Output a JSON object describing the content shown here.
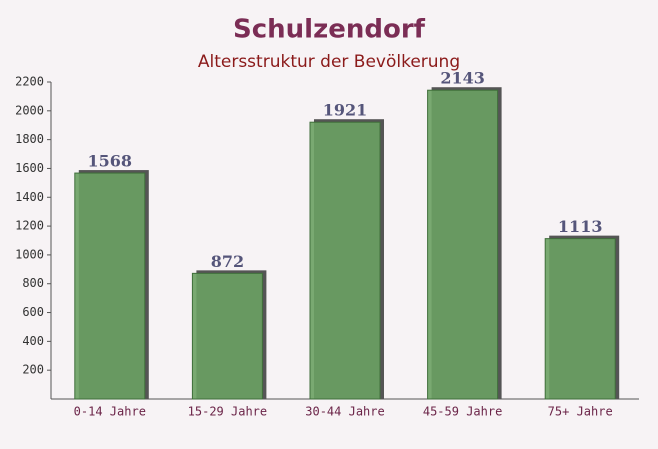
{
  "chart_data": {
    "type": "bar",
    "title": "Schulzendorf",
    "subtitle": "Altersstruktur der Bevölkerung",
    "categories": [
      "0-14 Jahre",
      "15-29 Jahre",
      "30-44 Jahre",
      "45-59 Jahre",
      "75+ Jahre"
    ],
    "values": [
      1568,
      872,
      1921,
      2143,
      1113
    ],
    "color": "#6aa163",
    "ylim": [
      0,
      2200
    ],
    "yticks": [
      200,
      400,
      600,
      800,
      1000,
      1200,
      1400,
      1600,
      1800,
      2000,
      2200
    ]
  }
}
